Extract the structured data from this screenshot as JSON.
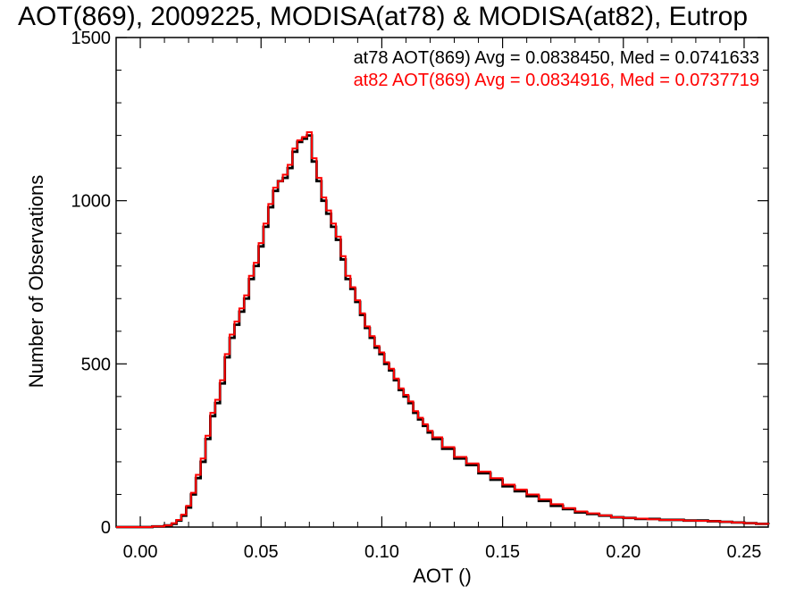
{
  "chart_data": {
    "type": "line",
    "title": "AOT(869), 2009225, MODISA(at78) & MODISA(at82), Eutrop",
    "xlabel": "AOT ()",
    "ylabel": "Number of Observations",
    "xlim": [
      -0.01,
      0.26
    ],
    "ylim": [
      0,
      1500
    ],
    "x_ticks": [
      0.0,
      0.05,
      0.1,
      0.15,
      0.2,
      0.25
    ],
    "x_tick_labels": [
      "0.00",
      "0.05",
      "0.10",
      "0.15",
      "0.20",
      "0.25"
    ],
    "y_ticks": [
      0,
      500,
      1000,
      1500
    ],
    "y_tick_labels": [
      "0",
      "500",
      "1000",
      "1500"
    ],
    "legend_placement": "top-right",
    "grid": false,
    "histogram_style": "step",
    "series": [
      {
        "name": "at78",
        "label": "at78 AOT(869) Avg = 0.0838450, Med = 0.0741633",
        "color": "#000000",
        "x": [
          -0.01,
          0.0,
          0.005,
          0.01,
          0.013,
          0.015,
          0.017,
          0.019,
          0.021,
          0.023,
          0.025,
          0.027,
          0.029,
          0.031,
          0.033,
          0.035,
          0.037,
          0.039,
          0.041,
          0.043,
          0.045,
          0.047,
          0.049,
          0.051,
          0.053,
          0.055,
          0.057,
          0.059,
          0.061,
          0.063,
          0.065,
          0.067,
          0.069,
          0.071,
          0.073,
          0.075,
          0.077,
          0.079,
          0.081,
          0.083,
          0.085,
          0.087,
          0.089,
          0.091,
          0.093,
          0.095,
          0.097,
          0.099,
          0.101,
          0.103,
          0.105,
          0.107,
          0.109,
          0.111,
          0.113,
          0.115,
          0.117,
          0.119,
          0.121,
          0.125,
          0.13,
          0.135,
          0.14,
          0.145,
          0.15,
          0.155,
          0.16,
          0.165,
          0.17,
          0.175,
          0.18,
          0.185,
          0.19,
          0.195,
          0.2,
          0.205,
          0.21,
          0.215,
          0.22,
          0.225,
          0.23,
          0.235,
          0.24,
          0.245,
          0.25,
          0.255,
          0.26
        ],
        "values": [
          0,
          0,
          2,
          5,
          10,
          20,
          35,
          60,
          100,
          150,
          200,
          270,
          340,
          380,
          440,
          520,
          580,
          620,
          660,
          700,
          760,
          800,
          860,
          920,
          980,
          1030,
          1060,
          1070,
          1100,
          1150,
          1180,
          1190,
          1200,
          1120,
          1060,
          1000,
          960,
          920,
          880,
          820,
          760,
          730,
          690,
          650,
          610,
          580,
          550,
          530,
          500,
          480,
          450,
          420,
          400,
          380,
          350,
          330,
          310,
          290,
          270,
          240,
          210,
          190,
          165,
          145,
          125,
          110,
          95,
          80,
          65,
          55,
          45,
          40,
          35,
          30,
          28,
          25,
          25,
          22,
          22,
          20,
          20,
          18,
          16,
          14,
          12,
          10,
          8
        ]
      },
      {
        "name": "at82",
        "label": "at82 AOT(869) Avg = 0.0834916, Med = 0.0737719",
        "color": "#ff0000",
        "x": [
          -0.01,
          0.0,
          0.005,
          0.01,
          0.013,
          0.015,
          0.017,
          0.019,
          0.021,
          0.023,
          0.025,
          0.027,
          0.029,
          0.031,
          0.033,
          0.035,
          0.037,
          0.039,
          0.041,
          0.043,
          0.045,
          0.047,
          0.049,
          0.051,
          0.053,
          0.055,
          0.057,
          0.059,
          0.061,
          0.063,
          0.065,
          0.067,
          0.069,
          0.071,
          0.073,
          0.075,
          0.077,
          0.079,
          0.081,
          0.083,
          0.085,
          0.087,
          0.089,
          0.091,
          0.093,
          0.095,
          0.097,
          0.099,
          0.101,
          0.103,
          0.105,
          0.107,
          0.109,
          0.111,
          0.113,
          0.115,
          0.117,
          0.119,
          0.121,
          0.125,
          0.13,
          0.135,
          0.14,
          0.145,
          0.15,
          0.155,
          0.16,
          0.165,
          0.17,
          0.175,
          0.18,
          0.185,
          0.19,
          0.195,
          0.2,
          0.205,
          0.21,
          0.215,
          0.22,
          0.225,
          0.23,
          0.235,
          0.24,
          0.245,
          0.25,
          0.255,
          0.26
        ],
        "values": [
          0,
          0,
          2,
          5,
          12,
          22,
          38,
          65,
          105,
          160,
          210,
          280,
          350,
          390,
          450,
          530,
          590,
          630,
          670,
          710,
          770,
          810,
          870,
          930,
          990,
          1040,
          1060,
          1080,
          1110,
          1160,
          1185,
          1195,
          1210,
          1130,
          1070,
          1010,
          970,
          930,
          890,
          830,
          770,
          735,
          695,
          655,
          615,
          585,
          555,
          535,
          505,
          485,
          455,
          425,
          405,
          385,
          355,
          335,
          315,
          295,
          275,
          245,
          215,
          195,
          170,
          150,
          130,
          115,
          100,
          85,
          70,
          58,
          48,
          42,
          36,
          30,
          28,
          26,
          24,
          22,
          22,
          20,
          19,
          18,
          16,
          14,
          12,
          10,
          8
        ]
      }
    ]
  }
}
